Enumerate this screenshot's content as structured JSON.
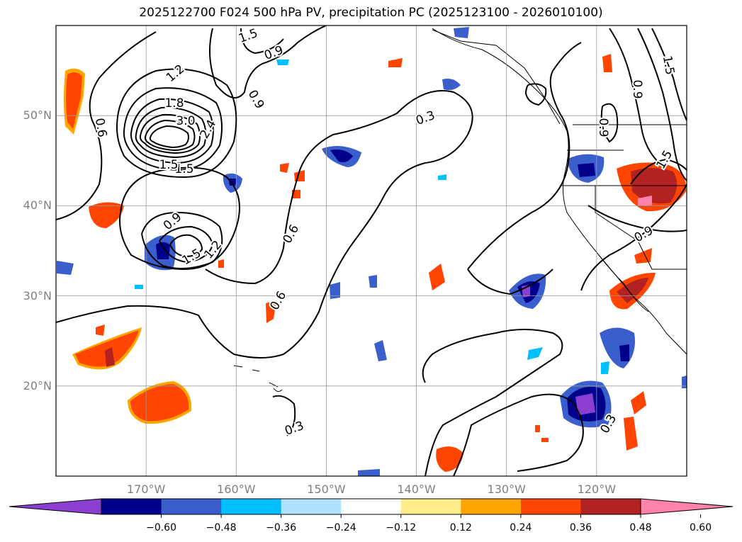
{
  "title": "2025122700 F024 500 hPa PV, precipitation PC (2025123100 - 2026010100)",
  "map": {
    "lon_range": [
      -180,
      -110
    ],
    "lat_range": [
      10,
      60
    ],
    "lat_ticks": [
      {
        "value": 50,
        "label": "50°N"
      },
      {
        "value": 40,
        "label": "40°N"
      },
      {
        "value": 30,
        "label": "30°N"
      },
      {
        "value": 20,
        "label": "20°N"
      }
    ],
    "lon_ticks": [
      {
        "value": -170,
        "label": "170°W"
      },
      {
        "value": -160,
        "label": "160°W"
      },
      {
        "value": -150,
        "label": "150°W"
      },
      {
        "value": -140,
        "label": "140°W"
      },
      {
        "value": -130,
        "label": "130°W"
      },
      {
        "value": -120,
        "label": "120°W"
      }
    ],
    "grid": true,
    "contour_labels": [
      "0.3",
      "0.6",
      "0.9",
      "1.2",
      "1.5",
      "1.8",
      "2.4",
      "3.0"
    ]
  },
  "colorbar": {
    "ticks": [
      "−0.60",
      "−0.48",
      "−0.36",
      "−0.24",
      "−0.12",
      "0.12",
      "0.24",
      "0.36",
      "0.48",
      "0.60"
    ],
    "colors": [
      "#8b3fd1",
      "#00008b",
      "#3a5fcd",
      "#00bfff",
      "#b0e2ff",
      "#ffffff",
      "#ffec8b",
      "#ffa500",
      "#ff4500",
      "#b22222",
      "#ff82ab"
    ]
  }
}
